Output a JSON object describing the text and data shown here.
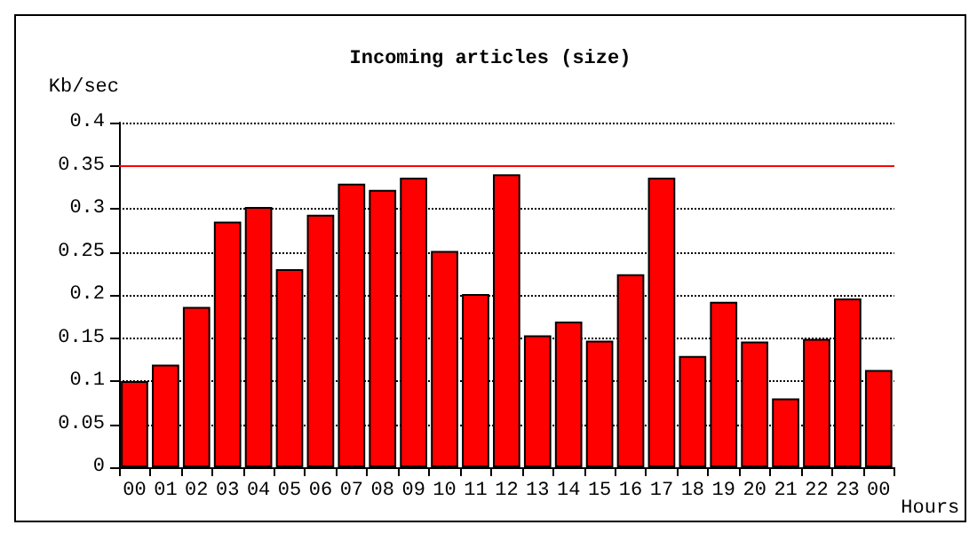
{
  "chart_data": {
    "type": "bar",
    "title": "Incoming articles (size)",
    "ylabel": "Kb/sec",
    "xlabel": "Hours",
    "categories": [
      "00",
      "01",
      "02",
      "03",
      "04",
      "05",
      "06",
      "07",
      "08",
      "09",
      "10",
      "11",
      "12",
      "13",
      "14",
      "15",
      "16",
      "17",
      "18",
      "19",
      "20",
      "21",
      "22",
      "23",
      "00"
    ],
    "values": [
      0.1,
      0.119,
      0.186,
      0.285,
      0.302,
      0.23,
      0.293,
      0.329,
      0.322,
      0.336,
      0.251,
      0.201,
      0.34,
      0.153,
      0.169,
      0.147,
      0.224,
      0.336,
      0.129,
      0.192,
      0.146,
      0.08,
      0.149,
      0.196,
      0.113
    ],
    "color": "#ff0000",
    "ylim": [
      0,
      0.4
    ],
    "yticks": [
      0,
      0.05,
      0.1,
      0.15,
      0.2,
      0.25,
      0.3,
      0.35,
      0.4
    ],
    "grid": "y",
    "ref_lines": [
      {
        "axis": "y",
        "value": 0.35,
        "color": "#ff0000"
      }
    ]
  }
}
